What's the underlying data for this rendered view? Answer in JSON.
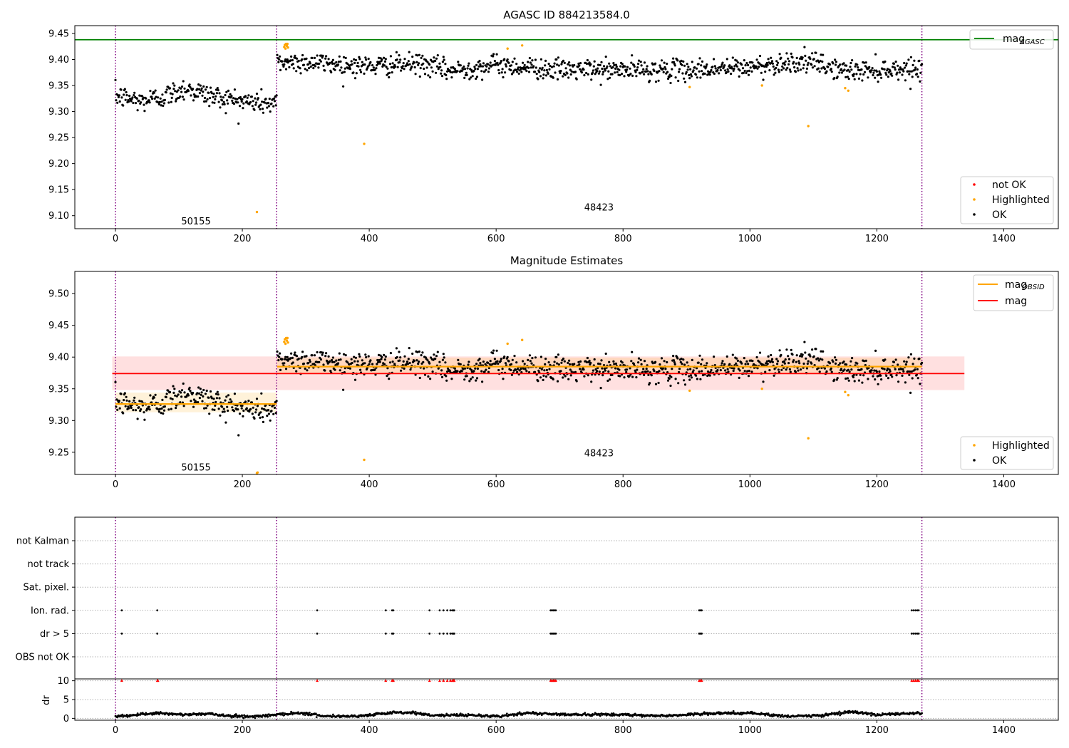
{
  "chart_data": [
    {
      "type": "scatter",
      "title": "AGASC ID 884213584.0",
      "xlim": [
        -64,
        1486
      ],
      "ylim": [
        9.075,
        9.465
      ],
      "xticks": [
        0,
        200,
        400,
        600,
        800,
        1000,
        1200,
        1400
      ],
      "yticks": [
        "9.10",
        "9.15",
        "9.20",
        "9.25",
        "9.30",
        "9.35",
        "9.40",
        "9.45"
      ],
      "observation_boundaries": [
        0,
        254,
        1271
      ],
      "observation_labels": [
        {
          "label": "50155",
          "x": 127,
          "y": 9.09
        },
        {
          "label": "48423",
          "x": 762,
          "y": 9.117
        }
      ],
      "reference_line": {
        "name": "mag_AGASC",
        "value": 9.438,
        "color": "#008000"
      },
      "legend_top": [
        {
          "name": "mag",
          "subscript": "AGASC",
          "color": "#008000"
        }
      ],
      "legend_bottom": [
        {
          "name": "not OK",
          "color": "#ff0000"
        },
        {
          "name": "Highlighted",
          "color": "#ffa500"
        },
        {
          "name": "OK",
          "color": "#000000"
        }
      ],
      "series": [
        {
          "name": "OK",
          "color": "#000000",
          "segments": [
            {
              "x_start": 0,
              "x_end": 254,
              "levels": [
                [
                  0,
                  9.33
                ],
                [
                  40,
                  9.32
                ],
                [
                  80,
                  9.33
                ],
                [
                  110,
                  9.345
                ],
                [
                  150,
                  9.33
                ],
                [
                  200,
                  9.32
                ],
                [
                  254,
                  9.315
                ]
              ],
              "noise": 0.011
            },
            {
              "x_start": 255,
              "x_end": 1271,
              "levels": [
                [
                  255,
                  9.395
                ],
                [
                  300,
                  9.395
                ],
                [
                  400,
                  9.387
                ],
                [
                  480,
                  9.392
                ],
                [
                  530,
                  9.378
                ],
                [
                  600,
                  9.39
                ],
                [
                  700,
                  9.38
                ],
                [
                  800,
                  9.38
                ],
                [
                  900,
                  9.38
                ],
                [
                  1000,
                  9.385
                ],
                [
                  1060,
                  9.395
                ],
                [
                  1100,
                  9.393
                ],
                [
                  1150,
                  9.378
                ],
                [
                  1271,
                  9.383
                ]
              ],
              "noise": 0.01
            }
          ]
        },
        {
          "name": "Highlighted",
          "color": "#ffa500",
          "points": [
            [
              223,
              9.107
            ],
            [
              266,
              9.424
            ],
            [
              267,
              9.428
            ],
            [
              268,
              9.421
            ],
            [
              269,
              9.43
            ],
            [
              270,
              9.426
            ],
            [
              271,
              9.43
            ],
            [
              272,
              9.423
            ],
            [
              392,
              9.238
            ],
            [
              618,
              9.421
            ],
            [
              641,
              9.427
            ],
            [
              905,
              9.347
            ],
            [
              1019,
              9.35
            ],
            [
              1092,
              9.272
            ],
            [
              1150,
              9.345
            ],
            [
              1155,
              9.34
            ]
          ]
        }
      ]
    },
    {
      "type": "scatter",
      "title": "Magnitude Estimates",
      "xlim": [
        -64,
        1486
      ],
      "ylim": [
        9.215,
        9.535
      ],
      "xticks": [
        0,
        200,
        400,
        600,
        800,
        1000,
        1200,
        1400
      ],
      "yticks": [
        "9.25",
        "9.30",
        "9.35",
        "9.40",
        "9.45",
        "9.50"
      ],
      "observation_boundaries": [
        0,
        254,
        1271
      ],
      "observation_labels": [
        {
          "label": "50155",
          "x": 127,
          "y": 9.227
        },
        {
          "label": "48423",
          "x": 762,
          "y": 9.249
        }
      ],
      "mag": {
        "value": 9.374,
        "band": [
          9.348,
          9.401
        ],
        "x_range": [
          -5,
          1338
        ],
        "color": "#ff0000"
      },
      "mag_obsid": [
        {
          "x_range": [
            0,
            254
          ],
          "value": 9.326,
          "band": [
            9.313,
            9.344
          ]
        },
        {
          "x_range": [
            255,
            1271
          ],
          "value": 9.385,
          "band": [
            9.373,
            9.399
          ]
        }
      ],
      "legend_top": [
        {
          "name": "mag",
          "subscript": "OBSID",
          "color": "#ffa500"
        },
        {
          "name": "mag",
          "color": "#ff0000"
        }
      ],
      "legend_bottom": [
        {
          "name": "Highlighted",
          "color": "#ffa500"
        },
        {
          "name": "OK",
          "color": "#000000"
        }
      ],
      "series": [
        {
          "name": "OK",
          "color": "#000000",
          "segments": [
            {
              "x_start": 0,
              "x_end": 254,
              "levels": [
                [
                  0,
                  9.33
                ],
                [
                  40,
                  9.32
                ],
                [
                  80,
                  9.33
                ],
                [
                  110,
                  9.345
                ],
                [
                  150,
                  9.33
                ],
                [
                  200,
                  9.32
                ],
                [
                  254,
                  9.315
                ]
              ],
              "noise": 0.011
            },
            {
              "x_start": 255,
              "x_end": 1271,
              "levels": [
                [
                  255,
                  9.395
                ],
                [
                  300,
                  9.395
                ],
                [
                  400,
                  9.387
                ],
                [
                  480,
                  9.392
                ],
                [
                  530,
                  9.378
                ],
                [
                  600,
                  9.39
                ],
                [
                  700,
                  9.38
                ],
                [
                  800,
                  9.38
                ],
                [
                  900,
                  9.38
                ],
                [
                  1000,
                  9.385
                ],
                [
                  1060,
                  9.395
                ],
                [
                  1100,
                  9.393
                ],
                [
                  1150,
                  9.378
                ],
                [
                  1271,
                  9.383
                ]
              ],
              "noise": 0.01
            }
          ]
        },
        {
          "name": "Highlighted",
          "color": "#ffa500",
          "points": [
            [
              223,
              9.217
            ],
            [
              224,
              9.218
            ],
            [
              266,
              9.424
            ],
            [
              267,
              9.428
            ],
            [
              268,
              9.421
            ],
            [
              269,
              9.43
            ],
            [
              270,
              9.426
            ],
            [
              271,
              9.43
            ],
            [
              272,
              9.423
            ],
            [
              392,
              9.238
            ],
            [
              618,
              9.421
            ],
            [
              641,
              9.427
            ],
            [
              905,
              9.347
            ],
            [
              1019,
              9.35
            ],
            [
              1092,
              9.272
            ],
            [
              1150,
              9.345
            ],
            [
              1155,
              9.34
            ]
          ]
        }
      ]
    },
    {
      "type": "scatter",
      "title": "",
      "xlim": [
        -64,
        1486
      ],
      "xticks": [
        0,
        200,
        400,
        600,
        800,
        1000,
        1200,
        1400
      ],
      "observation_boundaries": [
        0,
        254,
        1271
      ],
      "flag_rows": [
        "not Kalman",
        "not track",
        "Sat. pixel.",
        "Ion. rad.",
        "dr > 5",
        "OBS not OK"
      ],
      "flags": {
        "Ion. rad.": [
          10,
          66,
          318,
          426,
          436,
          438,
          495,
          511,
          517,
          523,
          528,
          531,
          533,
          534,
          686,
          688,
          690,
          692,
          694,
          920,
          922,
          924,
          1255,
          1258,
          1261,
          1264,
          1266
        ],
        "dr > 5": [
          10,
          66,
          318,
          426,
          436,
          438,
          495,
          511,
          517,
          523,
          528,
          531,
          533,
          534,
          686,
          688,
          690,
          692,
          694,
          920,
          922,
          924,
          1255,
          1258,
          1261,
          1264,
          1266
        ]
      },
      "dr_axis": {
        "ylabel": "dr",
        "ylim": [
          -0.5,
          10.5
        ],
        "yticks": [
          0,
          5,
          10
        ],
        "clipped_points_color": "#ff0000",
        "clipped_points": [
          10,
          66,
          67,
          318,
          426,
          436,
          438,
          495,
          511,
          517,
          523,
          528,
          531,
          533,
          534,
          686,
          688,
          690,
          692,
          694,
          920,
          922,
          924,
          1255,
          1258,
          1261,
          1264,
          1266
        ],
        "levels": [
          [
            0,
            0.6
          ],
          [
            30,
            0.8
          ],
          [
            60,
            1.4
          ],
          [
            100,
            1.0
          ],
          [
            150,
            1.2
          ],
          [
            180,
            0.6
          ],
          [
            220,
            0.5
          ],
          [
            255,
            1.0
          ],
          [
            290,
            1.5
          ],
          [
            330,
            0.6
          ],
          [
            380,
            0.6
          ],
          [
            440,
            1.5
          ],
          [
            470,
            1.5
          ],
          [
            500,
            0.8
          ],
          [
            560,
            0.9
          ],
          [
            600,
            0.5
          ],
          [
            650,
            1.4
          ],
          [
            720,
            1.0
          ],
          [
            800,
            1.0
          ],
          [
            830,
            0.8
          ],
          [
            870,
            0.7
          ],
          [
            940,
            1.3
          ],
          [
            1000,
            1.4
          ],
          [
            1060,
            0.5
          ],
          [
            1120,
            0.9
          ],
          [
            1160,
            1.8
          ],
          [
            1200,
            0.9
          ],
          [
            1271,
            1.4
          ]
        ]
      }
    }
  ]
}
